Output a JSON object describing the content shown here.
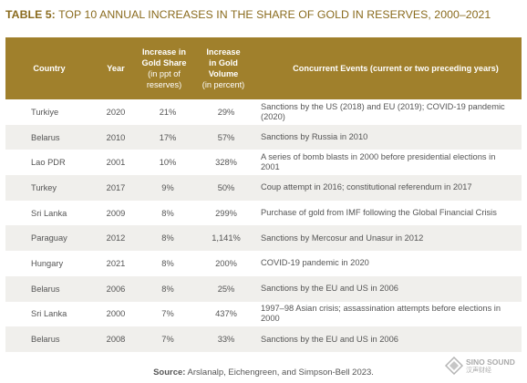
{
  "title": {
    "bold": "TABLE 5:",
    "text": " TOP 10 ANNUAL INCREASES IN THE SHARE OF GOLD IN RESERVES, 2000–2021"
  },
  "columns": {
    "country": "Country",
    "year": "Year",
    "share_line1": "Increase in",
    "share_line2": "Gold Share",
    "share_sub1": "(in ppt of",
    "share_sub2": "reserves)",
    "volume_line1": "Increase",
    "volume_line2": "in Gold",
    "volume_line3": "Volume",
    "volume_sub": "(in percent)",
    "events": "Concurrent Events (current or two preceding years)"
  },
  "rows": [
    {
      "country": "Turkiye",
      "year": "2020",
      "share": "21%",
      "volume": "29%",
      "events": "Sanctions by the US (2018) and EU (2019); COVID-19 pandemic (2020)"
    },
    {
      "country": "Belarus",
      "year": "2010",
      "share": "17%",
      "volume": "57%",
      "events": "Sanctions by Russia in 2010"
    },
    {
      "country": "Lao PDR",
      "year": "2001",
      "share": "10%",
      "volume": "328%",
      "events": "A series of bomb blasts in 2000 before presidential elections in 2001"
    },
    {
      "country": "Turkey",
      "year": "2017",
      "share": "9%",
      "volume": "50%",
      "events": "Coup attempt in 2016; constitutional referendum in 2017"
    },
    {
      "country": "Sri Lanka",
      "year": "2009",
      "share": "8%",
      "volume": "299%",
      "events": "Purchase of gold from IMF following the Global Financial Crisis"
    },
    {
      "country": "Paraguay",
      "year": "2012",
      "share": "8%",
      "volume": "1,141%",
      "events": "Sanctions by Mercosur and Unasur in 2012"
    },
    {
      "country": "Hungary",
      "year": "2021",
      "share": "8%",
      "volume": "200%",
      "events": "COVID-19 pandemic in 2020"
    },
    {
      "country": "Belarus",
      "year": "2006",
      "share": "8%",
      "volume": "25%",
      "events": "Sanctions by the EU and US in 2006"
    },
    {
      "country": "Sri Lanka",
      "year": "2000",
      "share": "7%",
      "volume": "437%",
      "events": "1997–98 Asian crisis; assassination attempts before elections in 2000"
    },
    {
      "country": "Belarus",
      "year": "2008",
      "share": "7%",
      "volume": "33%",
      "events": "Sanctions by the EU and US in 2006"
    }
  ],
  "source": {
    "label": "Source:",
    "text": " Arslanalp, Eichengreen, and Simpson-Bell 2023."
  },
  "watermark": {
    "name": "SINO SOUND",
    "sub": "汉声财经",
    "icon": "diamond-logo-icon"
  },
  "colors": {
    "header_bg": "#a0802c",
    "title": "#8a6b1e",
    "alt_row": "#f0efec"
  }
}
